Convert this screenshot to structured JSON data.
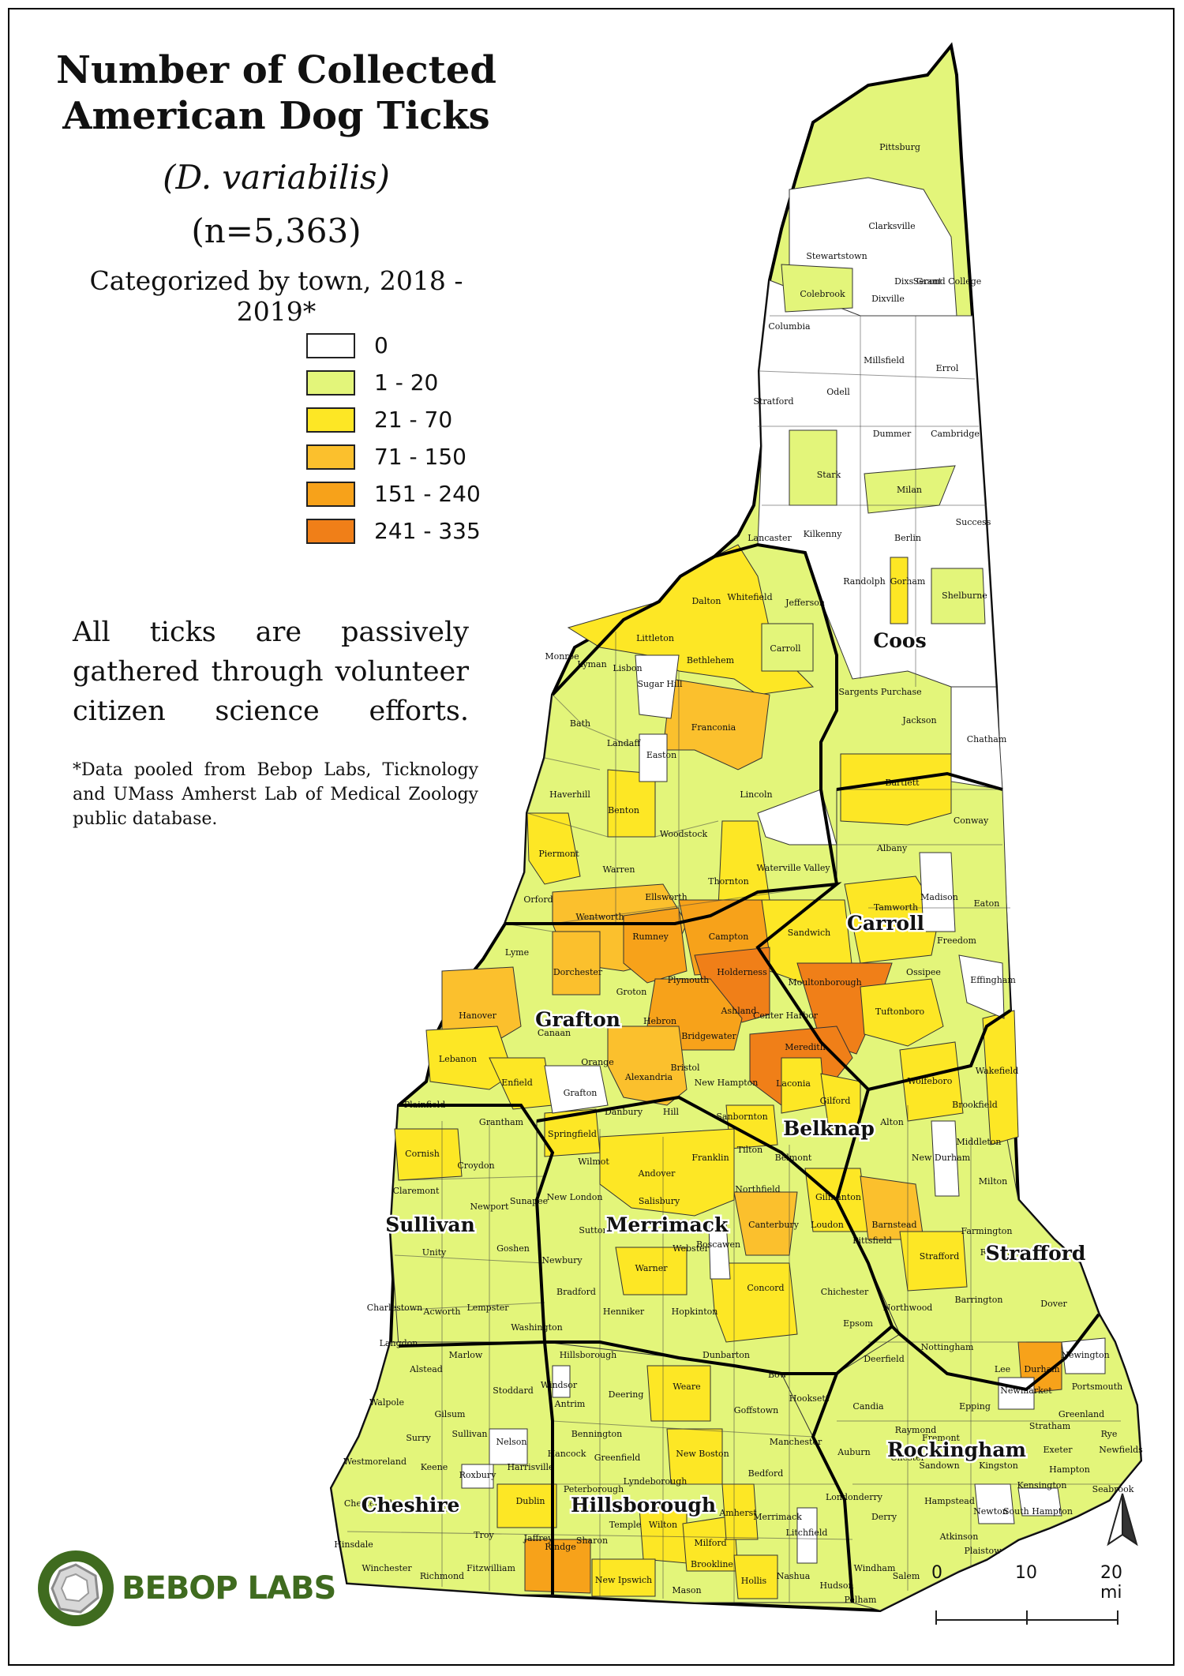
{
  "title": "Number of  Collected American Dog Ticks",
  "species": "(D. variabilis)",
  "count": "(n=5,363)",
  "subtitle": "Categorized by town, 2018 - 2019*",
  "legend": [
    {
      "label": "0",
      "color": "#ffffff"
    },
    {
      "label": "1 - 20",
      "color": "#e3f57a"
    },
    {
      "label": "21 - 70",
      "color": "#fde725"
    },
    {
      "label": "71 - 150",
      "color": "#fbc02d"
    },
    {
      "label": "151 - 240",
      "color": "#f7a21a"
    },
    {
      "label": "241 - 335",
      "color": "#f07f18"
    }
  ],
  "note": "All ticks are passively gathered through volunteer citizen science efforts.",
  "footnote": "*Data pooled from Bebop Labs, Ticknology and UMass Amherst Lab of Medical Zoology public database.",
  "logo_text": "BEBOP LABS",
  "scale": {
    "labels": [
      "0",
      "10",
      "20 mi"
    ]
  },
  "north_arrow": "north-arrow-icon",
  "counties": [
    "Coos",
    "Carroll",
    "Grafton",
    "Belknap",
    "Sullivan",
    "Merrimack",
    "Strafford",
    "Rockingham",
    "Cheshire",
    "Hillsborough"
  ],
  "towns": {
    "Pittsburg": "0",
    "Clarksville": "0",
    "Stewartstown": "0",
    "Colebrook": "1-20",
    "Dixville": "0",
    "Dixs Grant": "0",
    "Second College": "0",
    "Columbia": "0",
    "Millsfield": "0",
    "Errol": "0",
    "Stratford": "0",
    "Odell": "0",
    "Dummer": "0",
    "Cambridge": "0",
    "Stark": "1-20",
    "Milan": "1-20",
    "Success": "0",
    "Berlin": "0",
    "Kilkenny": "0",
    "Lancaster": "0",
    "Randolph": "0",
    "Gorham": "21-70",
    "Shelburne": "1-20",
    "Jefferson": "0",
    "Dalton": "0",
    "Whitefield": "21-70",
    "Carroll": "1-20",
    "Littleton": "21-70",
    "Bethlehem": "21-70",
    "Monroe": "0",
    "Lyman": "0",
    "Lisbon": "0",
    "Sugar Hill": "1-20",
    "Franconia": "71-150",
    "Sargents Purchase": "0",
    "Jackson": "0",
    "Chatham": "0",
    "Bath": "1-20",
    "Landaff": "1-20",
    "Easton": "0",
    "Lincoln": "1-20",
    "Haverhill": "1-20",
    "Benton": "21-70",
    "Bartlett": "21-70",
    "Conway": "1-20",
    "Piermont": "21-70",
    "Warren": "1-20",
    "Woodstock": "1-20",
    "Waterville Valley": "1-20",
    "Albany": "1-20",
    "Orford": "1-20",
    "Ellsworth": "21-70",
    "Thornton": "21-70",
    "Madison": "0",
    "Eaton": "1-20",
    "Wentworth": "71-150",
    "Rumney": "151-240",
    "Campton": "151-240",
    "Tamworth": "21-70",
    "Sandwich": "21-70",
    "Freedom": "1-20",
    "Lyme": "21-70",
    "Dorchester": "71-150",
    "Groton": "1-20",
    "Holderness": "241-335",
    "Plymouth": "151-240",
    "Moultonborough": "151-240",
    "Ossipee": "21-70",
    "Effingham": "0",
    "Hanover": "71-150",
    "Canaan": "1-20",
    "Hebron": "151-240",
    "Ashland": "151-240",
    "Center Harbor": "21-70",
    "Tuftonboro": "21-70",
    "Bridgewater": "71-150",
    "Lebanon": "21-70",
    "Orange": "1-20",
    "Bristol": "71-150",
    "Meredith": "241-335",
    "Alexandria": "71-150",
    "Enfield": "21-70",
    "Grafton": "0",
    "New Hampton": "71-150",
    "Laconia": "21-70",
    "Wolfeboro": "21-70",
    "Wakefield": "21-70",
    "Gilford": "21-70",
    "Brookfield": "0",
    "Plainfield": "1-20",
    "Grantham": "1-20",
    "Springfield": "21-70",
    "Danbury": "1-20",
    "Hill": "1-20",
    "Sanbornton": "21-70",
    "Alton": "1-20",
    "New Durham": "0",
    "Middleton": "1-20",
    "Cornish": "21-70",
    "Croydon": "1-20",
    "Wilmot": "21-70",
    "Andover": "21-70",
    "Franklin": "21-70",
    "Tilton": "1-20",
    "Belmont": "1-20",
    "Milton": "1-20",
    "Claremont": "1-20",
    "Newport": "1-20",
    "Sunapee": "1-20",
    "New London": "1-20",
    "Salisbury": "21-70",
    "Northfield": "1-20",
    "Gilmanton": "21-70",
    "Barnstead": "71-150",
    "Farmington": "1-20",
    "Rochester": "1-20",
    "Unity": "1-20",
    "Goshen": "1-20",
    "Newbury": "1-20",
    "Sutton": "1-20",
    "Webster": "1-20",
    "Boscawen": "0",
    "Canterbury": "71-150",
    "Loudon": "1-20",
    "Pittsfield": "1-20",
    "Strafford": "21-70",
    "Charlestown": "1-20",
    "Acworth": "1-20",
    "Lempster": "1-20",
    "Warner": "21-70",
    "Concord": "21-70",
    "Chichester": "1-20",
    "Barrington": "1-20",
    "Dover": "1-20",
    "Bradford": "1-20",
    "Washington": "1-20",
    "Henniker": "1-20",
    "Hopkinton": "1-20",
    "Epsom": "1-20",
    "Northwood": "1-20",
    "Langdon": "1-20",
    "Hillsborough": "1-20",
    "Dunbarton": "1-20",
    "Bow": "1-20",
    "Deerfield": "1-20",
    "Nottingham": "1-20",
    "Lee": "1-20",
    "Durham": "151-240",
    "Newington": "0",
    "Alstead": "1-20",
    "Marlow": "1-20",
    "Stoddard": "1-20",
    "Windsor": "0",
    "Deering": "1-20",
    "Weare": "21-70",
    "Goffstown": "1-20",
    "Hooksett": "1-20",
    "Candia": "1-20",
    "Epping": "1-20",
    "Newmarket": "0",
    "Portsmouth": "1-20",
    "Walpole": "1-20",
    "Gilsum": "1-20",
    "Antrim": "1-20",
    "Raymond": "1-20",
    "Stratham": "1-20",
    "Greenland": "1-20",
    "Rye": "1-20",
    "Surry": "1-20",
    "Sullivan": "1-20",
    "Nelson": "0",
    "Bennington": "1-20",
    "Fremont": "0",
    "Exeter": "1-20",
    "Newfields": "1-20",
    "Westmoreland": "1-20",
    "Keene": "1-20",
    "Roxbury": "0",
    "Harrisville": "1-20",
    "Hancock": "1-20",
    "Greenfield": "1-20",
    "New Boston": "21-70",
    "Manchester": "1-20",
    "Auburn": "1-20",
    "Chester": "1-20",
    "Danville": "1-20",
    "Kingston": "0",
    "Hampton": "1-20",
    "Chesterfield": "1-20",
    "Swanzey": "1-20",
    "Dublin": "21-70",
    "Peterborough": "1-20",
    "Bedford": "1-20",
    "Sandown": "1-20",
    "Kensington": "1-20",
    "Seabrook": "1-20",
    "Merrimack": "1-20",
    "Londonderry": "1-20",
    "Derry": "1-20",
    "Hampstead": "1-20",
    "Newton": "0",
    "South Hampton": "0",
    "Troy": "1-20",
    "Jaffrey": "1-20",
    "Sharon": "1-20",
    "Temple": "1-20",
    "Wilton": "21-70",
    "Lyndeborough": "21-70",
    "Milford": "21-70",
    "Amherst": "21-70",
    "Litchfield": "0",
    "Hinsdale": "1-20",
    "Winchester": "1-20",
    "Richmond": "1-20",
    "Fitzwilliam": "1-20",
    "Rindge": "151-240",
    "New Ipswich": "21-70",
    "Mason": "1-20",
    "Brookline": "1-20",
    "Hollis": "21-70",
    "Nashua": "1-20",
    "Hudson": "1-20",
    "Pelham": "1-20",
    "Windham": "1-20",
    "Salem": "1-20",
    "Atkinson": "1-20",
    "Plaistow": "1-20"
  }
}
